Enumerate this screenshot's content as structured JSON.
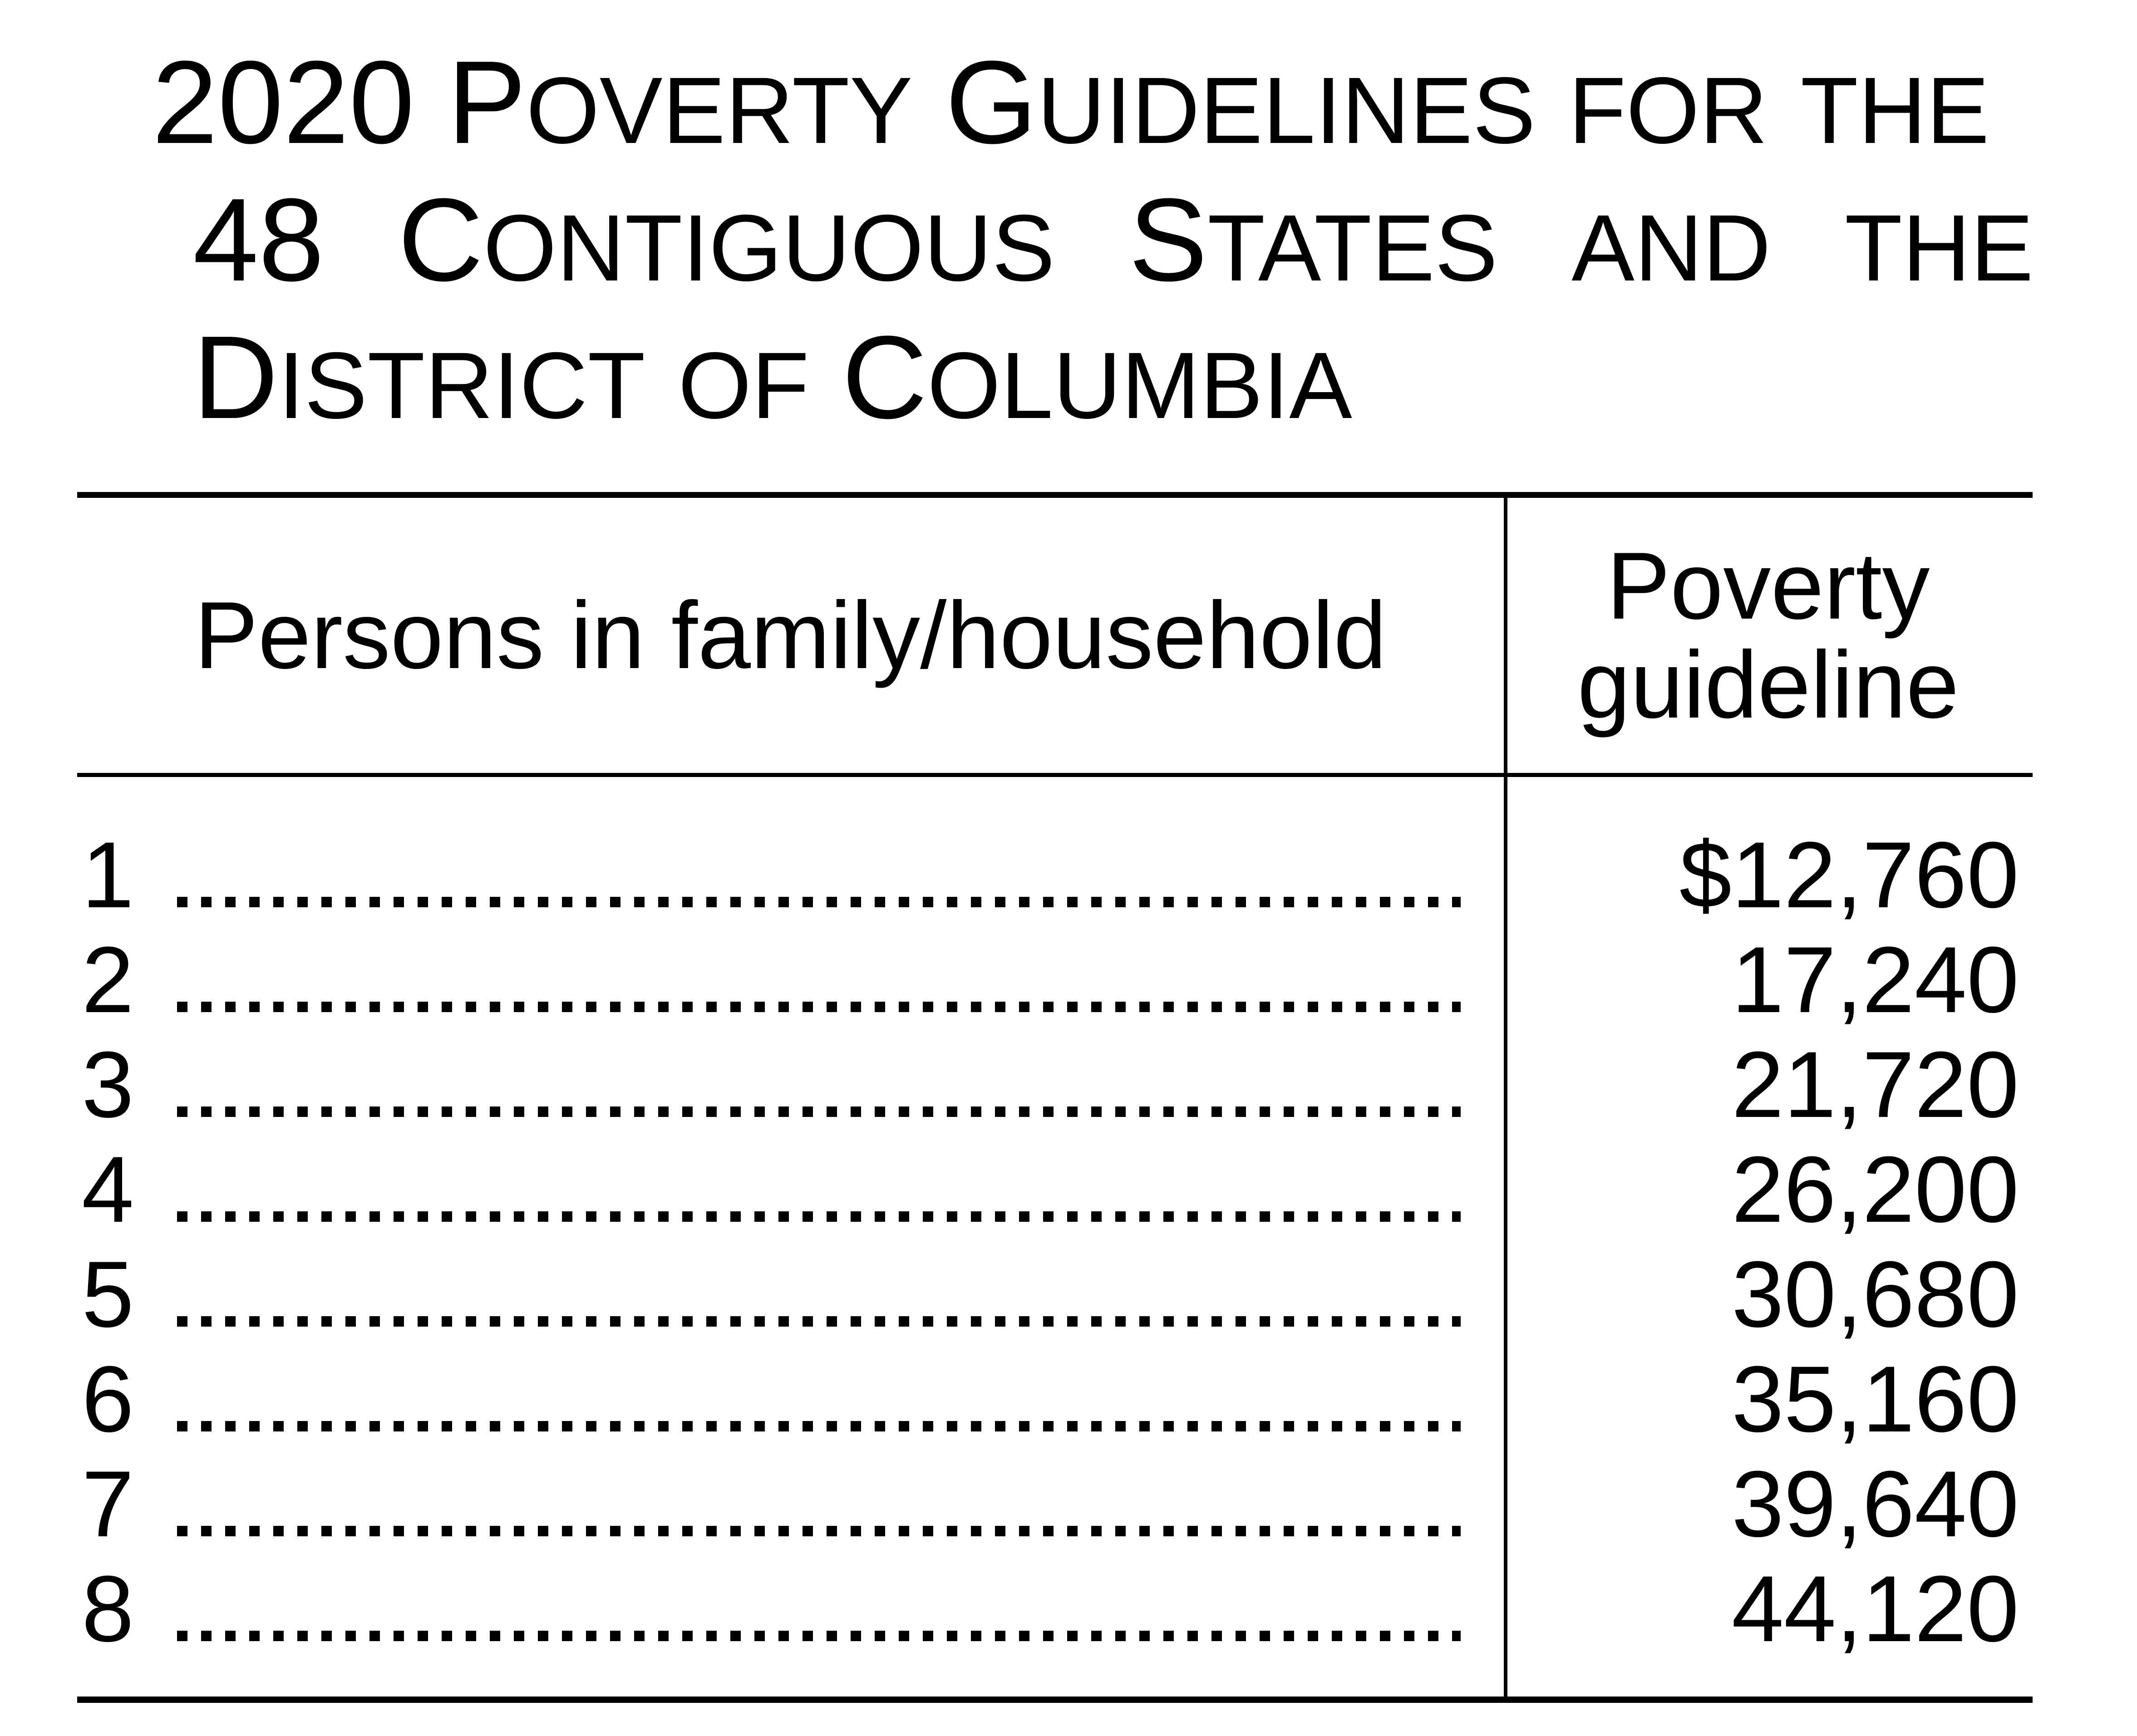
{
  "document": {
    "title_lines": [
      "2020 Poverty Guidelines for the",
      "48 Contiguous States and the",
      "District of Columbia"
    ]
  },
  "table": {
    "header": {
      "persons": "Persons in family/household",
      "guideline": "Poverty\nguideline"
    },
    "rows": [
      {
        "persons": "1",
        "amount": "$12,760"
      },
      {
        "persons": "2",
        "amount": "17,240"
      },
      {
        "persons": "3",
        "amount": "21,720"
      },
      {
        "persons": "4",
        "amount": "26,200"
      },
      {
        "persons": "5",
        "amount": "30,680"
      },
      {
        "persons": "6",
        "amount": "35,160"
      },
      {
        "persons": "7",
        "amount": "39,640"
      },
      {
        "persons": "8",
        "amount": "44,120"
      }
    ]
  },
  "colors": {
    "ink": "#000000",
    "paper": "#ffffff"
  }
}
